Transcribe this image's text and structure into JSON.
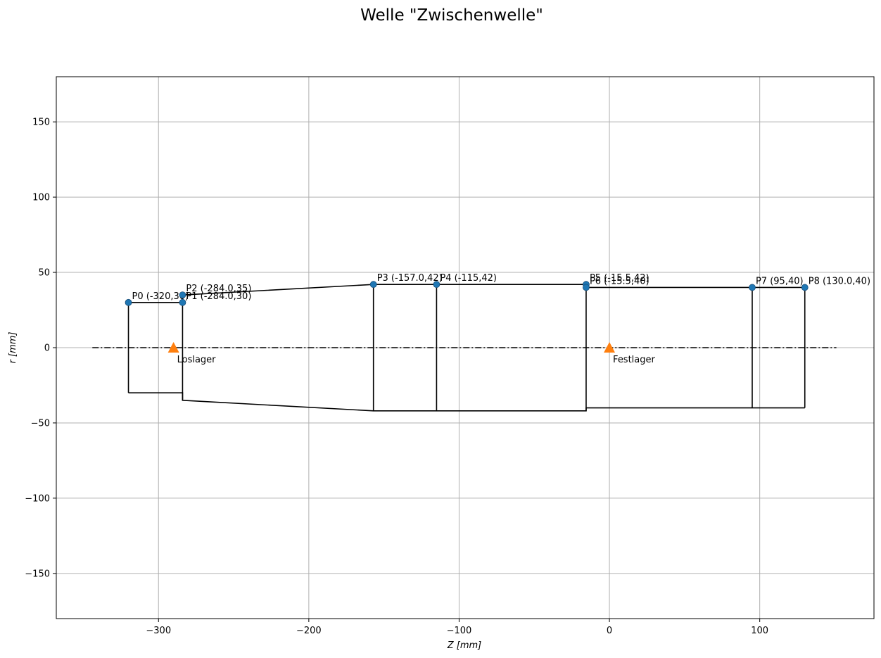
{
  "chart_data": {
    "type": "line",
    "title": "Welle \"Zwischenwelle\"",
    "xlabel": "Z [mm]",
    "ylabel": "r [mm]",
    "xlim": [
      -368,
      176
    ],
    "ylim": [
      -180,
      180
    ],
    "xticks": [
      -300,
      -200,
      -100,
      0,
      100
    ],
    "yticks": [
      -150,
      -100,
      -50,
      0,
      50,
      100,
      150
    ],
    "xtick_labels": [
      "−300",
      "−200",
      "−100",
      "0",
      "100"
    ],
    "ytick_labels": [
      "−150",
      "−100",
      "−50",
      "0",
      "50",
      "100",
      "150"
    ],
    "grid": true,
    "colors": {
      "outline": "#000000",
      "points": "#1f77b4",
      "bearing": "#ff7f0e",
      "grid": "#b0b0b0"
    },
    "centerline": {
      "x": [
        -344,
        151
      ],
      "y": 0,
      "style": "dash-dot"
    },
    "outline_upper": {
      "x": [
        -320,
        -284,
        -284,
        -157,
        -115,
        -15.5,
        -15.5,
        95,
        130
      ],
      "y": [
        30,
        30,
        35,
        42,
        42,
        42,
        40,
        40,
        40
      ]
    },
    "outline_lower": {
      "x": [
        -320,
        -284,
        -284,
        -157,
        -115,
        -15.5,
        -15.5,
        95,
        130
      ],
      "y": [
        -30,
        -30,
        -35,
        -42,
        -42,
        -42,
        -40,
        -40,
        -40
      ]
    },
    "sections": [
      {
        "x": -320,
        "r": 30
      },
      {
        "x": -284,
        "r": 35
      },
      {
        "x": -157,
        "r": 42
      },
      {
        "x": -115,
        "r": 42
      },
      {
        "x": -15.5,
        "r": 42
      },
      {
        "x": 95,
        "r": 40
      },
      {
        "x": 130,
        "r": 40
      }
    ],
    "points": [
      {
        "label": "P0 (-320,30)",
        "x": -320,
        "y": 30
      },
      {
        "label": "P1 (-284.0,30)",
        "x": -284,
        "y": 30
      },
      {
        "label": "P2 (-284.0,35)",
        "x": -284,
        "y": 35
      },
      {
        "label": "P3 (-157.0,42)",
        "x": -157,
        "y": 42
      },
      {
        "label": "P4 (-115,42)",
        "x": -115,
        "y": 42
      },
      {
        "label": "P5 (-15.5,42)",
        "x": -15.5,
        "y": 42
      },
      {
        "label": "P6 (-15.5,40)",
        "x": -15.5,
        "y": 40
      },
      {
        "label": "P7 (95,40)",
        "x": 95,
        "y": 40
      },
      {
        "label": "P8 (130.0,40)",
        "x": 130,
        "y": 40
      }
    ],
    "bearings": [
      {
        "label": "Loslager",
        "x": -290,
        "y": 0
      },
      {
        "label": "Festlager",
        "x": 0,
        "y": 0
      }
    ]
  }
}
